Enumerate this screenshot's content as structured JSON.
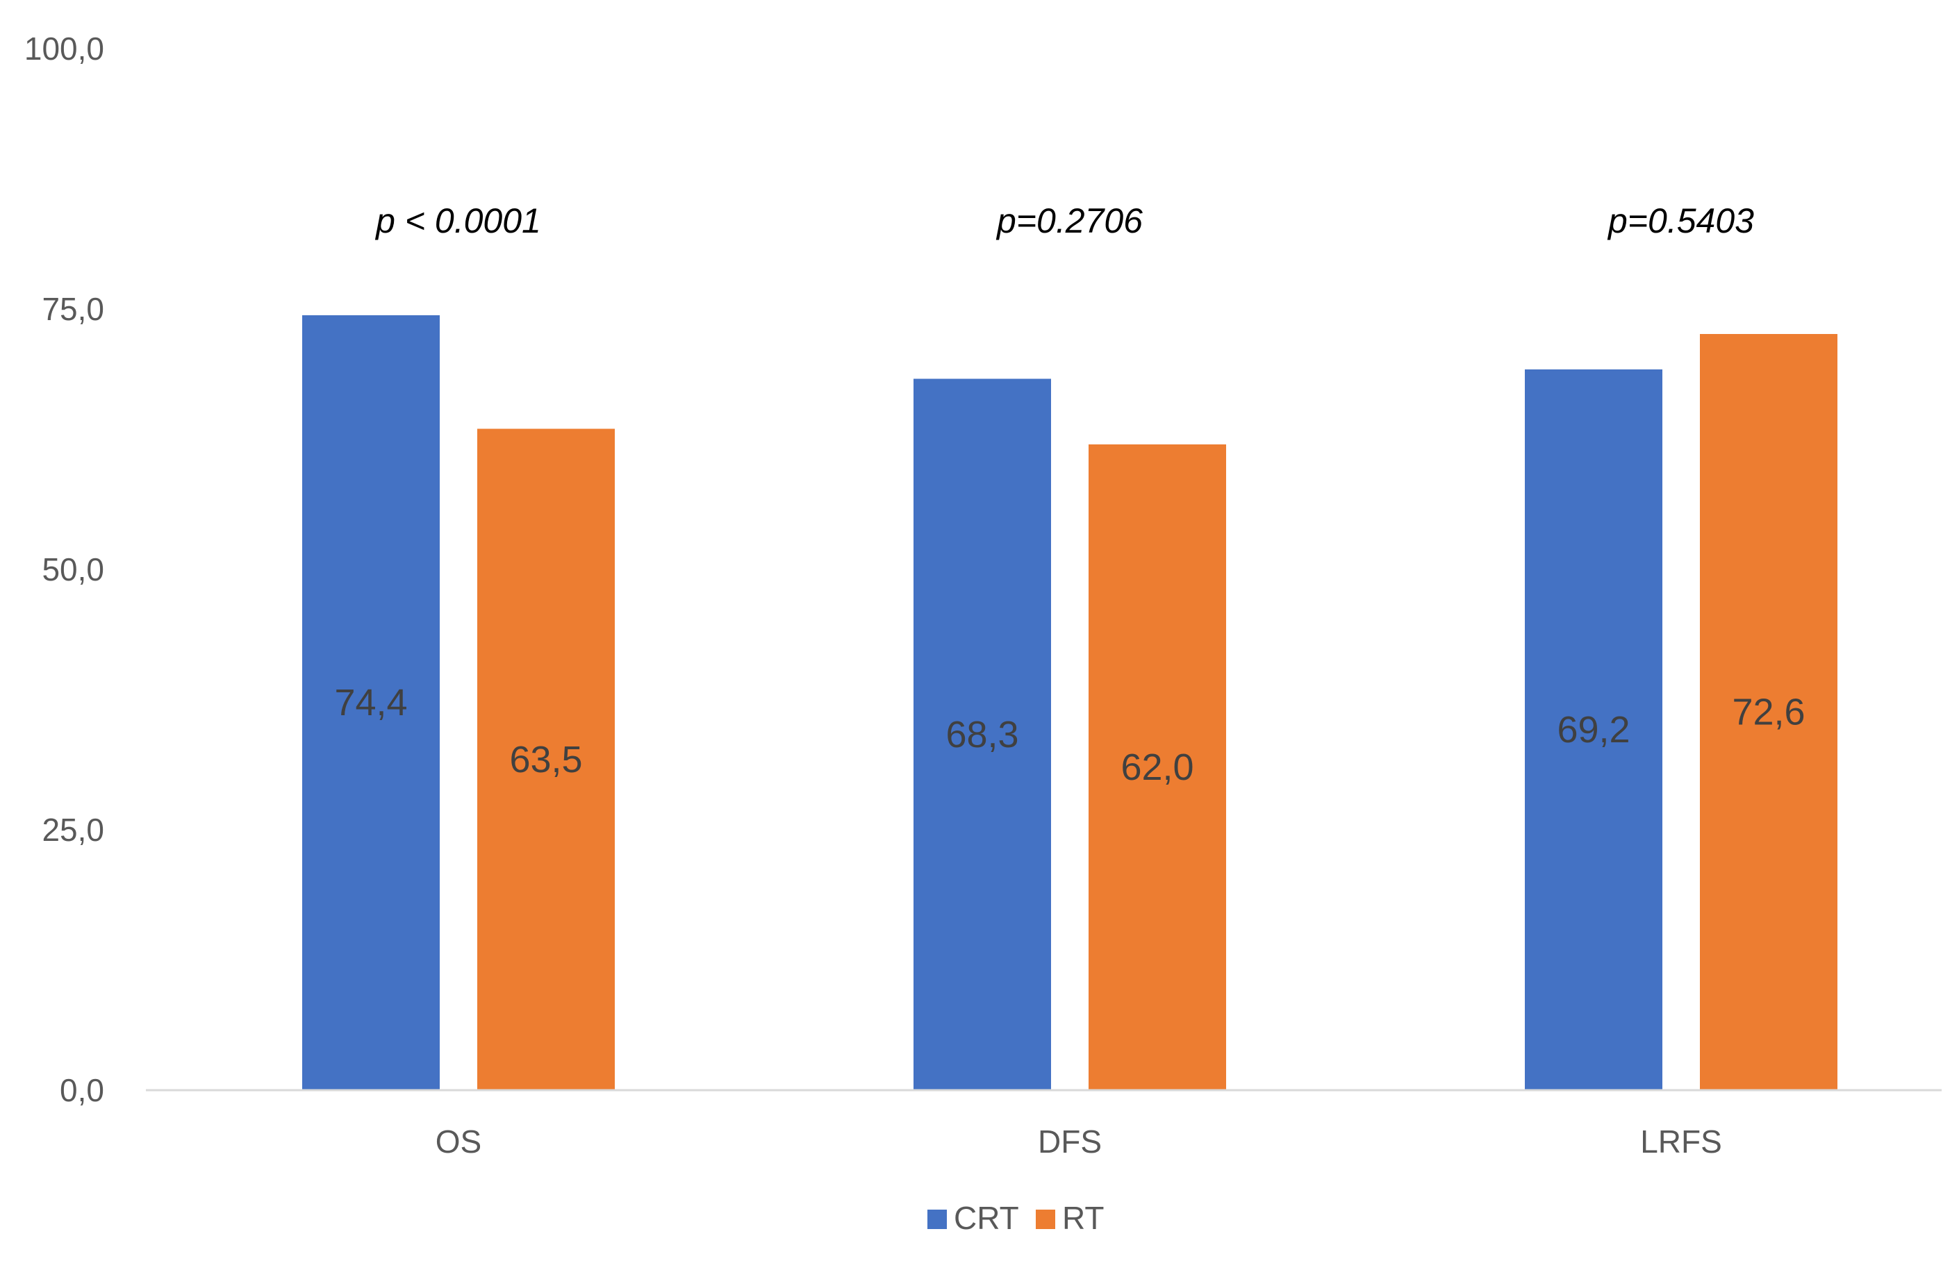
{
  "chart_data": {
    "type": "bar",
    "categories": [
      "OS",
      "DFS",
      "LRFS"
    ],
    "series": [
      {
        "name": "CRT",
        "color": "#4472C4",
        "values": [
          74.4,
          68.3,
          69.2
        ],
        "labels": [
          "74,4",
          "68,3",
          "69,2"
        ]
      },
      {
        "name": "RT",
        "color": "#ED7D31",
        "values": [
          63.5,
          62.0,
          72.6
        ],
        "labels": [
          "63,5",
          "62,0",
          "72,6"
        ]
      }
    ],
    "annotations": [
      "p < 0.0001",
      "p=0.2706",
      "p=0.5403"
    ],
    "ylim": [
      0,
      100
    ],
    "yticks": [
      0,
      25,
      50,
      75,
      100
    ],
    "ytick_labels": [
      "0,0",
      "25,0",
      "50,0",
      "75,0",
      "100,0"
    ],
    "grid": false,
    "legend_position": "bottom",
    "title": "",
    "xlabel": "",
    "ylabel": ""
  }
}
